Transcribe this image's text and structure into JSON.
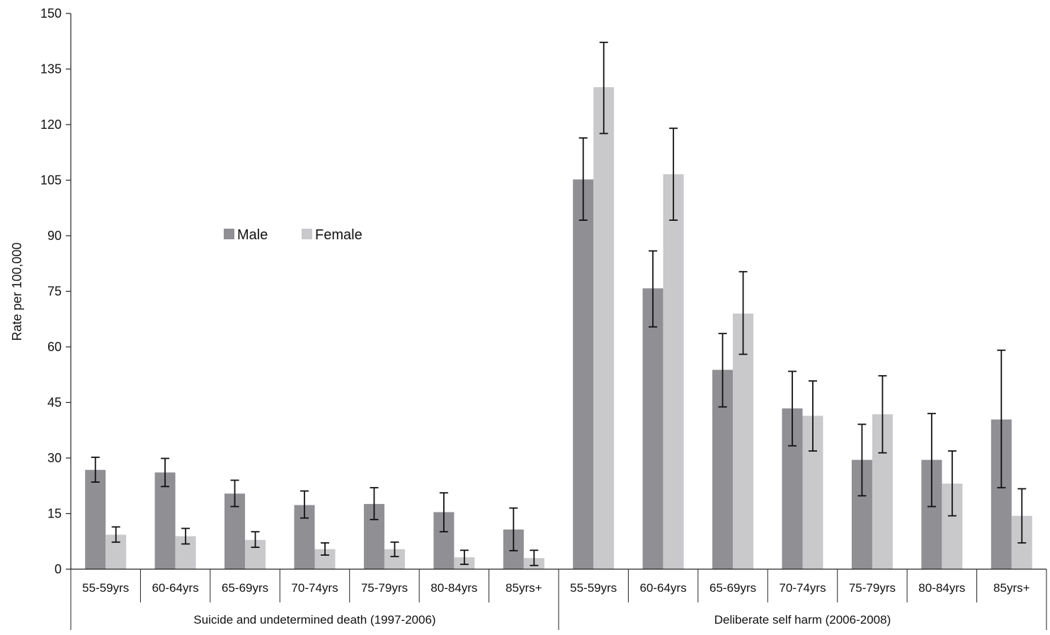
{
  "chart_data": {
    "type": "bar",
    "ylabel": "Rate per 100,000",
    "ylim": [
      0,
      150
    ],
    "yticks": [
      0,
      15,
      30,
      45,
      60,
      75,
      90,
      105,
      120,
      135,
      150
    ],
    "grid": false,
    "legend": {
      "placement": "upper-left-inside",
      "entries": [
        {
          "name": "Male",
          "color": "#8f8f94"
        },
        {
          "name": "Female",
          "color": "#c9c9cc"
        }
      ]
    },
    "groups": [
      {
        "label": "Suicide and undetermined death (1997-2006)",
        "categories": [
          "55-59yrs",
          "60-64yrs",
          "65-69yrs",
          "70-74yrs",
          "75-79yrs",
          "80-84yrs",
          "85yrs+"
        ]
      },
      {
        "label": "Deliberate self harm (2006-2008)",
        "categories": [
          "55-59yrs",
          "60-64yrs",
          "65-69yrs",
          "70-74yrs",
          "75-79yrs",
          "80-84yrs",
          "85yrs+"
        ]
      }
    ],
    "series": [
      {
        "name": "Male",
        "color": "#8f8f94",
        "values": [
          26.8,
          26.1,
          20.4,
          17.3,
          17.6,
          15.4,
          10.7,
          105.2,
          75.8,
          53.8,
          43.4,
          29.5,
          29.5,
          40.4
        ],
        "error_low": [
          23.5,
          22.3,
          16.9,
          13.8,
          13.4,
          10.1,
          5.0,
          94.2,
          65.4,
          43.8,
          33.3,
          19.8,
          16.9,
          22.0
        ],
        "error_high": [
          30.2,
          29.9,
          24.0,
          21.1,
          22.0,
          20.6,
          16.5,
          116.4,
          85.9,
          63.6,
          53.4,
          39.1,
          42.0,
          59.1
        ]
      },
      {
        "name": "Female",
        "color": "#c9c9cc",
        "values": [
          9.3,
          8.9,
          7.9,
          5.4,
          5.4,
          3.2,
          3.0,
          130.1,
          106.6,
          69.0,
          41.4,
          41.8,
          23.1,
          14.4
        ],
        "error_low": [
          7.3,
          6.8,
          5.9,
          3.8,
          3.4,
          1.3,
          1.0,
          117.6,
          94.2,
          58.0,
          31.9,
          31.4,
          14.4,
          7.1
        ],
        "error_high": [
          11.4,
          11.0,
          10.1,
          7.1,
          7.3,
          5.1,
          5.1,
          142.2,
          119.0,
          80.3,
          50.8,
          52.2,
          31.9,
          21.7
        ]
      }
    ]
  }
}
